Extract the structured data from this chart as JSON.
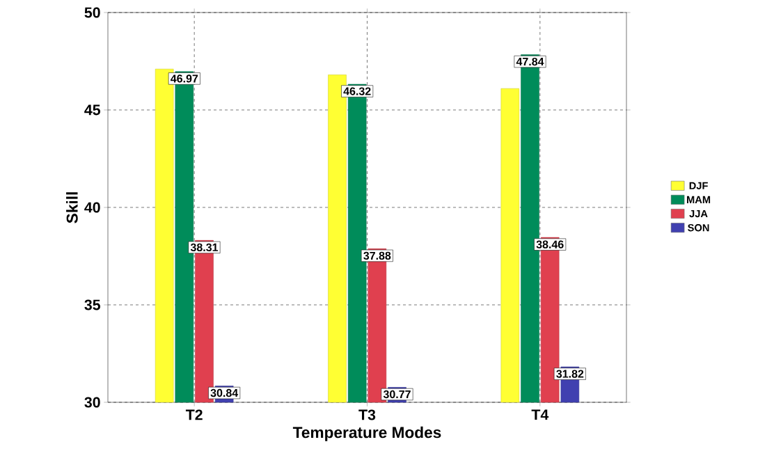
{
  "chart_data": {
    "type": "bar",
    "xlabel": "Temperature Modes",
    "ylabel": "Skill",
    "categories": [
      "T2",
      "T3",
      "T4"
    ],
    "series": [
      {
        "name": "DJF",
        "color": "#ffff33",
        "values": [
          47.1,
          46.8,
          46.1
        ],
        "value_labels": [
          null,
          null,
          null
        ]
      },
      {
        "name": "MAM",
        "color": "#008c5a",
        "values": [
          46.97,
          46.32,
          47.84
        ],
        "value_labels": [
          "46.97",
          "46.32",
          "47.84"
        ]
      },
      {
        "name": "JJA",
        "color": "#e0404f",
        "values": [
          38.31,
          37.88,
          38.46
        ],
        "value_labels": [
          "38.31",
          "37.88",
          "38.46"
        ]
      },
      {
        "name": "SON",
        "color": "#4040b0",
        "values": [
          30.84,
          30.77,
          31.82
        ],
        "value_labels": [
          "30.84",
          "30.77",
          "31.82"
        ]
      }
    ],
    "ylim": [
      30,
      50
    ],
    "yticks": [
      30,
      35,
      40,
      45,
      50
    ],
    "grid": true,
    "legend": "right"
  }
}
